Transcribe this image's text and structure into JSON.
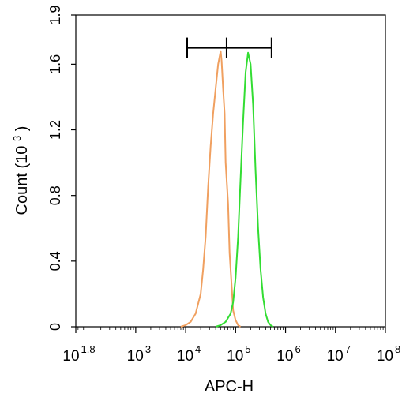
{
  "chart_data": {
    "type": "line",
    "title": "",
    "xlabel": "APC-H",
    "ylabel_main": "Count",
    "ylabel_unit": "(10",
    "ylabel_exp": "3",
    "ylabel_close": ")",
    "x_scale": "log",
    "xlim": [
      1.8,
      8
    ],
    "ylim": [
      0,
      1.9
    ],
    "y_ticks": [
      {
        "value": 0,
        "label": "0"
      },
      {
        "value": 0.4,
        "label": "0.4"
      },
      {
        "value": 0.8,
        "label": "0.8"
      },
      {
        "value": 1.2,
        "label": "1.2"
      },
      {
        "value": 1.6,
        "label": "1.6"
      },
      {
        "value": 1.9,
        "label": "1.9"
      }
    ],
    "x_ticks": [
      {
        "exp": 1.8,
        "base": "10",
        "sup": "1.8"
      },
      {
        "exp": 3,
        "base": "10",
        "sup": "3"
      },
      {
        "exp": 4,
        "base": "10",
        "sup": "4"
      },
      {
        "exp": 5,
        "base": "10",
        "sup": "5"
      },
      {
        "exp": 6,
        "base": "10",
        "sup": "6"
      },
      {
        "exp": 7,
        "base": "10",
        "sup": "7"
      },
      {
        "exp": 8,
        "base": "10",
        "sup": "8"
      }
    ],
    "gate": {
      "log10_x": [
        4.03,
        4.82,
        5.72
      ],
      "y": 1.7
    },
    "series": [
      {
        "color": "#f0a060",
        "log10_x": [
          3.9,
          4.0,
          4.1,
          4.2,
          4.3,
          4.35,
          4.4,
          4.45,
          4.5,
          4.55,
          4.6,
          4.65,
          4.7,
          4.72,
          4.75,
          4.78,
          4.8,
          4.85,
          4.88,
          4.92,
          4.95,
          5.0,
          5.05,
          5.1
        ],
        "y": [
          0,
          0.01,
          0.03,
          0.08,
          0.2,
          0.35,
          0.55,
          0.85,
          1.1,
          1.3,
          1.45,
          1.6,
          1.68,
          1.62,
          1.45,
          1.3,
          1.0,
          0.75,
          0.45,
          0.25,
          0.1,
          0.04,
          0.01,
          0
        ]
      },
      {
        "color": "#33dd33",
        "log10_x": [
          4.6,
          4.7,
          4.8,
          4.9,
          4.95,
          5.0,
          5.05,
          5.1,
          5.15,
          5.2,
          5.25,
          5.3,
          5.35,
          5.4,
          5.45,
          5.5,
          5.55,
          5.6,
          5.65,
          5.7,
          5.75
        ],
        "y": [
          0,
          0.01,
          0.03,
          0.08,
          0.15,
          0.3,
          0.55,
          0.9,
          1.25,
          1.55,
          1.67,
          1.6,
          1.35,
          0.95,
          0.6,
          0.35,
          0.18,
          0.08,
          0.03,
          0.01,
          0
        ]
      }
    ]
  }
}
